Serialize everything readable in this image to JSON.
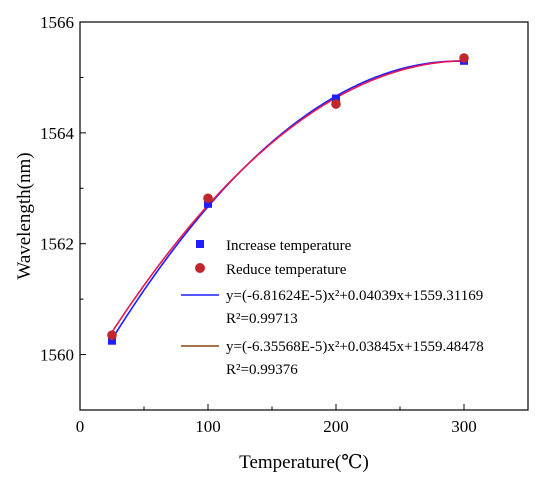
{
  "chart_data": {
    "type": "scatter",
    "xlabel": "Temperature(℃)",
    "ylabel": "Wavelength(nm)",
    "xlim": [
      0,
      350
    ],
    "ylim": [
      1559,
      1566
    ],
    "x_ticks": [
      0,
      100,
      200,
      300
    ],
    "y_ticks": [
      1560,
      1562,
      1564,
      1566
    ],
    "grid": false,
    "legend_position": "center-right",
    "series": [
      {
        "name": "Increase temperature",
        "kind": "points",
        "marker": "square",
        "color": "#1f1fff",
        "x": [
          25,
          100,
          200,
          300
        ],
        "y": [
          1560.25,
          1562.72,
          1564.62,
          1565.3
        ]
      },
      {
        "name": "Reduce temperature",
        "kind": "points",
        "marker": "circle",
        "color": "#c0272d",
        "x": [
          25,
          100,
          200,
          300
        ],
        "y": [
          1560.35,
          1562.82,
          1564.52,
          1565.35
        ]
      },
      {
        "name": "y=(-6.81624E-5)x²+0.04039x+1559.31169",
        "kind": "fit",
        "color": "#1f1fff",
        "coefficients": {
          "a": -6.81624e-05,
          "b": 0.04039,
          "c": 1559.31169
        },
        "x_range": [
          25,
          300
        ],
        "r_squared_label": "R²=0.99713"
      },
      {
        "name": "y=(-6.35568E-5)x²+0.03845x+1559.48478",
        "kind": "fit",
        "color": "#e8174f",
        "legend_color": "#8b4513",
        "coefficients": {
          "a": -6.35568e-05,
          "b": 0.03845,
          "c": 1559.48478
        },
        "x_range": [
          25,
          300
        ],
        "r_squared_label": "R²=0.99376"
      }
    ]
  }
}
